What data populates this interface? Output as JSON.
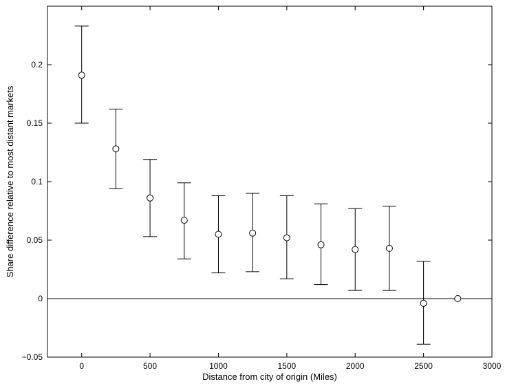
{
  "chart_data": {
    "type": "scatter",
    "title": "",
    "xlabel": "Distance from city of origin (Miles)",
    "ylabel": "Share difference relative to most distant markets",
    "xlim": [
      -250,
      3000
    ],
    "ylim": [
      -0.05,
      0.25
    ],
    "xticks": [
      0,
      500,
      1000,
      1500,
      2000,
      2500,
      3000
    ],
    "xtick_labels": [
      "0",
      "500",
      "1000",
      "1500",
      "2000",
      "2500",
      "3000"
    ],
    "yticks": [
      -0.05,
      0,
      0.05,
      0.1,
      0.15,
      0.2
    ],
    "ytick_labels": [
      "−0.05",
      "0",
      "0.05",
      "0.1",
      "0.15",
      "0.2"
    ],
    "grid": false,
    "reference_line_y": 0,
    "marker": "open-circle",
    "series": [
      {
        "points": [
          {
            "x": 0,
            "y": 0.191,
            "lower": 0.15,
            "upper": 0.233
          },
          {
            "x": 250,
            "y": 0.128,
            "lower": 0.094,
            "upper": 0.162
          },
          {
            "x": 500,
            "y": 0.086,
            "lower": 0.053,
            "upper": 0.119
          },
          {
            "x": 750,
            "y": 0.067,
            "lower": 0.034,
            "upper": 0.099
          },
          {
            "x": 1000,
            "y": 0.055,
            "lower": 0.022,
            "upper": 0.088
          },
          {
            "x": 1250,
            "y": 0.056,
            "lower": 0.023,
            "upper": 0.09
          },
          {
            "x": 1500,
            "y": 0.052,
            "lower": 0.017,
            "upper": 0.088
          },
          {
            "x": 1750,
            "y": 0.046,
            "lower": 0.012,
            "upper": 0.081
          },
          {
            "x": 2000,
            "y": 0.042,
            "lower": 0.007,
            "upper": 0.077
          },
          {
            "x": 2250,
            "y": 0.043,
            "lower": 0.007,
            "upper": 0.079
          },
          {
            "x": 2500,
            "y": -0.004,
            "lower": -0.039,
            "upper": 0.032
          },
          {
            "x": 2750,
            "y": 0.0
          }
        ]
      }
    ]
  }
}
